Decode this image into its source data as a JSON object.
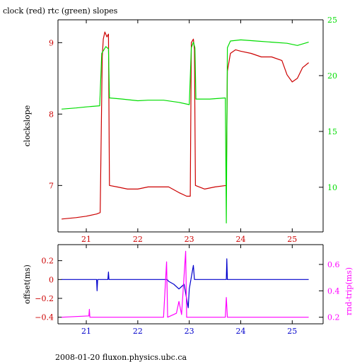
{
  "title": "clock (red) rtc (green) slopes",
  "footer": "2008-01-20 fluxon.physics.ubc.ca",
  "colors": {
    "red": "#cc0000",
    "green": "#00dd00",
    "blue": "#0000cc",
    "magenta": "#ff00ff",
    "axis": "#000000"
  },
  "chart_data": [
    {
      "type": "line",
      "title": "clock (red) rtc (green) slopes",
      "xlabel": "",
      "ylabel": "clockslope",
      "y2label": "",
      "xlim": [
        20.45,
        25.6
      ],
      "ylim": [
        6.35,
        9.32
      ],
      "y2lim": [
        6.0,
        25.0
      ],
      "xticks": [
        21,
        22,
        23,
        24,
        25
      ],
      "yticks": [
        7,
        8,
        9
      ],
      "y2ticks": [
        10,
        15,
        20,
        25
      ],
      "series": [
        {
          "axis": "left",
          "color": "#cc0000",
          "points": [
            [
              20.52,
              6.53
            ],
            [
              20.8,
              6.55
            ],
            [
              21.0,
              6.57
            ],
            [
              21.2,
              6.6
            ],
            [
              21.27,
              6.62
            ],
            [
              21.31,
              8.8
            ],
            [
              21.33,
              9.05
            ],
            [
              21.36,
              9.15
            ],
            [
              21.4,
              9.08
            ],
            [
              21.43,
              9.12
            ],
            [
              21.45,
              7.0
            ],
            [
              21.6,
              6.98
            ],
            [
              21.8,
              6.95
            ],
            [
              22.0,
              6.95
            ],
            [
              22.2,
              6.98
            ],
            [
              22.4,
              6.98
            ],
            [
              22.6,
              6.98
            ],
            [
              22.8,
              6.9
            ],
            [
              22.95,
              6.85
            ],
            [
              23.02,
              6.85
            ],
            [
              23.04,
              9.0
            ],
            [
              23.08,
              9.05
            ],
            [
              23.1,
              8.9
            ],
            [
              23.12,
              7.0
            ],
            [
              23.3,
              6.95
            ],
            [
              23.5,
              6.98
            ],
            [
              23.72,
              7.0
            ],
            [
              23.74,
              8.6
            ],
            [
              23.8,
              8.85
            ],
            [
              23.9,
              8.9
            ],
            [
              24.0,
              8.88
            ],
            [
              24.2,
              8.85
            ],
            [
              24.4,
              8.8
            ],
            [
              24.6,
              8.8
            ],
            [
              24.8,
              8.75
            ],
            [
              24.9,
              8.55
            ],
            [
              25.0,
              8.45
            ],
            [
              25.1,
              8.5
            ],
            [
              25.2,
              8.65
            ],
            [
              25.32,
              8.72
            ]
          ]
        },
        {
          "axis": "right",
          "color": "#00dd00",
          "points": [
            [
              20.52,
              17.0
            ],
            [
              20.8,
              17.1
            ],
            [
              21.0,
              17.2
            ],
            [
              21.26,
              17.3
            ],
            [
              21.3,
              22.0
            ],
            [
              21.38,
              22.6
            ],
            [
              21.43,
              22.4
            ],
            [
              21.45,
              18.0
            ],
            [
              21.7,
              17.9
            ],
            [
              22.0,
              17.75
            ],
            [
              22.2,
              17.8
            ],
            [
              22.5,
              17.8
            ],
            [
              22.8,
              17.6
            ],
            [
              23.0,
              17.4
            ],
            [
              23.04,
              22.5
            ],
            [
              23.08,
              23.0
            ],
            [
              23.11,
              22.5
            ],
            [
              23.13,
              17.9
            ],
            [
              23.4,
              17.9
            ],
            [
              23.7,
              18.0
            ],
            [
              23.72,
              6.8
            ],
            [
              23.74,
              22.5
            ],
            [
              23.8,
              23.1
            ],
            [
              24.0,
              23.2
            ],
            [
              24.3,
              23.1
            ],
            [
              24.6,
              23.0
            ],
            [
              24.9,
              22.9
            ],
            [
              25.1,
              22.7
            ],
            [
              25.32,
              23.0
            ]
          ]
        }
      ]
    },
    {
      "type": "line",
      "title": "",
      "xlabel": "",
      "ylabel": "offset(ms)",
      "y2label": "rnd-trip(ms)",
      "xlim": [
        20.45,
        25.6
      ],
      "ylim": [
        -0.47,
        0.37
      ],
      "y2lim": [
        0.15,
        0.75
      ],
      "xticks": [
        21,
        22,
        23,
        24,
        25
      ],
      "yticks": [
        0.2,
        0,
        -0.2,
        -0.4
      ],
      "ytick_labels": [
        "0.2",
        "0",
        "−0.2",
        "−0.4"
      ],
      "y2ticks": [
        0.2,
        0.4,
        0.6
      ],
      "series": [
        {
          "axis": "left",
          "color": "#0000cc",
          "points": [
            [
              20.52,
              0.0
            ],
            [
              21.2,
              0.0
            ],
            [
              21.21,
              -0.12
            ],
            [
              21.22,
              0.0
            ],
            [
              21.42,
              0.0
            ],
            [
              21.43,
              0.08
            ],
            [
              21.44,
              0.0
            ],
            [
              22.57,
              0.0
            ],
            [
              22.6,
              -0.02
            ],
            [
              22.7,
              -0.05
            ],
            [
              22.8,
              -0.1
            ],
            [
              22.9,
              -0.05
            ],
            [
              22.98,
              -0.3
            ],
            [
              23.0,
              -0.1
            ],
            [
              23.08,
              0.15
            ],
            [
              23.1,
              0.0
            ],
            [
              23.72,
              0.0
            ],
            [
              23.73,
              0.22
            ],
            [
              23.74,
              0.0
            ],
            [
              25.32,
              0.0
            ]
          ]
        },
        {
          "axis": "right",
          "color": "#ff00ff",
          "points": [
            [
              20.52,
              0.2
            ],
            [
              21.05,
              0.21
            ],
            [
              21.06,
              0.26
            ],
            [
              21.07,
              0.2
            ],
            [
              22.5,
              0.2
            ],
            [
              22.56,
              0.62
            ],
            [
              22.58,
              0.2
            ],
            [
              22.75,
              0.23
            ],
            [
              22.8,
              0.32
            ],
            [
              22.85,
              0.22
            ],
            [
              22.93,
              0.7
            ],
            [
              22.95,
              0.2
            ],
            [
              23.08,
              0.2
            ],
            [
              23.7,
              0.2
            ],
            [
              23.72,
              0.35
            ],
            [
              23.74,
              0.2
            ],
            [
              25.32,
              0.2
            ]
          ]
        }
      ]
    }
  ]
}
